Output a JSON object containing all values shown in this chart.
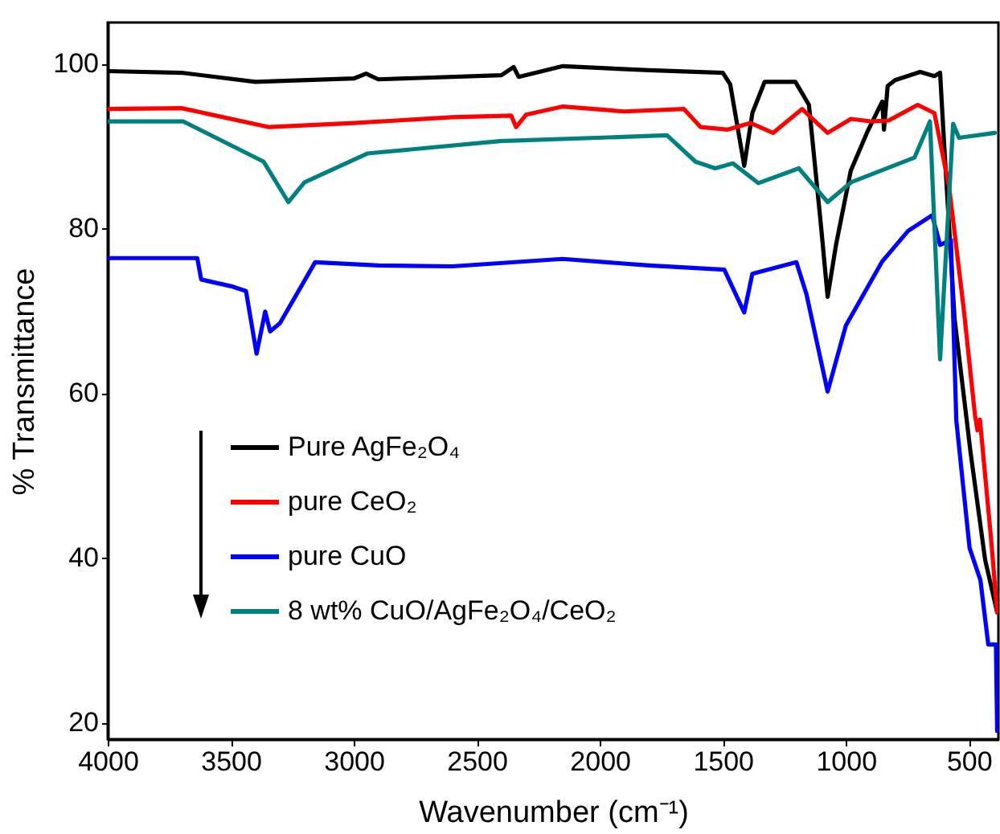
{
  "chart_data": {
    "type": "line",
    "xlabel": "Wavenumber (cm⁻¹)",
    "ylabel": "% Transmittance",
    "xlim": [
      4000,
      380
    ],
    "ylim": [
      18,
      105
    ],
    "xticks": [
      4000,
      3500,
      3000,
      2500,
      2000,
      1500,
      1000,
      500
    ],
    "yticks": [
      20,
      40,
      60,
      80,
      100
    ],
    "grid": false,
    "legend": "bottom left",
    "line_style": "solid",
    "marker": "none",
    "series": [
      {
        "name": "Pure AgFe₂O₄",
        "color": "#000000",
        "x": [
          4000,
          3700,
          3400,
          3000,
          2950,
          2900,
          2400,
          2350,
          2330,
          2150,
          1800,
          1500,
          1470,
          1413,
          1380,
          1330,
          1205,
          1150,
          1100,
          1074,
          1040,
          980,
          910,
          852,
          845,
          830,
          800,
          698,
          640,
          617,
          600,
          558,
          493,
          434,
          385
        ],
        "values": [
          99.1,
          98.9,
          97.8,
          98.2,
          98.8,
          98.1,
          98.6,
          99.6,
          98.4,
          99.7,
          99.2,
          98.9,
          97.5,
          87.6,
          94,
          97.8,
          97.8,
          95,
          80,
          71.7,
          78,
          87,
          91.9,
          95.4,
          92,
          97.3,
          98,
          99,
          98.5,
          98.9,
          90,
          69,
          52.8,
          39.8,
          33.4
        ]
      },
      {
        "name": "pure CeO₂",
        "color": "#ff0000",
        "x": [
          4000,
          3700,
          3344,
          3000,
          2600,
          2360,
          2340,
          2300,
          2150,
          1900,
          1658,
          1590,
          1480,
          1387,
          1296,
          1178,
          1074,
          979,
          900,
          826,
          708,
          640,
          580,
          520,
          475,
          465,
          455,
          410,
          385
        ],
        "values": [
          94.5,
          94.6,
          92.3,
          92.8,
          93.5,
          93.7,
          92.3,
          93.8,
          94.8,
          94.2,
          94.5,
          92.3,
          92,
          92.8,
          91.6,
          94.5,
          91.6,
          93.3,
          93,
          93.1,
          95,
          94,
          85,
          70,
          57.3,
          55.5,
          56.8,
          42.4,
          33.4
        ]
      },
      {
        "name": "pure CuO",
        "color": "#0000ff",
        "x": [
          4000,
          3636,
          3620,
          3500,
          3438,
          3395,
          3360,
          3340,
          3300,
          3157,
          2900,
          2600,
          2152,
          1800,
          1494,
          1413,
          1380,
          1201,
          1160,
          1074,
          1000,
          852,
          747,
          649,
          617,
          573,
          551,
          497,
          453,
          421,
          390,
          385
        ],
        "values": [
          76.4,
          76.4,
          73.8,
          73,
          72.4,
          64.8,
          69.9,
          67.5,
          68.5,
          75.9,
          75.5,
          75.4,
          76.3,
          75.5,
          75,
          69.8,
          74.5,
          75.9,
          72,
          60.2,
          68.2,
          76,
          79.7,
          81.6,
          78,
          78.6,
          56.7,
          41.2,
          37.3,
          29.5,
          29.5,
          19
        ]
      },
      {
        "name": "8 wt% CuO/AgFe₂O₄/CeO₂",
        "color": "#008080",
        "x": [
          4000,
          3694,
          3366,
          3266,
          3200,
          2945,
          2406,
          1727,
          1611,
          1531,
          1459,
          1355,
          1191,
          1074,
          979,
          721,
          658,
          617,
          564,
          540,
          394
        ],
        "values": [
          93,
          93,
          88.1,
          83.2,
          85.6,
          89.1,
          90.6,
          91.3,
          88.1,
          87.3,
          87.9,
          85.5,
          87.3,
          83.2,
          85.6,
          88.6,
          93,
          64.1,
          92.7,
          91,
          91.6
        ]
      }
    ]
  }
}
